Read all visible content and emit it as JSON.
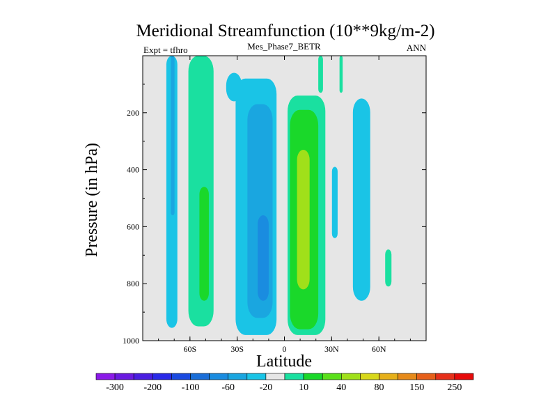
{
  "chart_data": {
    "type": "heatmap",
    "title": "Meridional Streamfunction (10**9kg/m-2)",
    "left_string": "Expt = tfhro",
    "center_string": "Mes_Phase7_BETR",
    "right_string": "ANN",
    "xlabel": "Latitude",
    "ylabel": "Pressure (in hPa)",
    "xlim": [
      -90,
      90
    ],
    "ylim": [
      1000,
      0
    ],
    "x_ticks": [
      {
        "value": -60,
        "label": "60S"
      },
      {
        "value": -30,
        "label": "30S"
      },
      {
        "value": 0,
        "label": "0"
      },
      {
        "value": 30,
        "label": "30N"
      },
      {
        "value": 60,
        "label": "60N"
      }
    ],
    "y_ticks": [
      {
        "value": 200,
        "label": "200"
      },
      {
        "value": 400,
        "label": "400"
      },
      {
        "value": 600,
        "label": "600"
      },
      {
        "value": 800,
        "label": "800"
      },
      {
        "value": 1000,
        "label": "1000"
      }
    ],
    "background_color": "#e6e6e6",
    "colorbar": {
      "colors": [
        "#8b1ae8",
        "#6a1ae0",
        "#4a1ee0",
        "#2a2ae8",
        "#1a4ae0",
        "#1a6ed8",
        "#1a8ce0",
        "#1aa6e0",
        "#1ac4e6",
        "#e6e6e6",
        "#1ae0a0",
        "#1ad82a",
        "#5ae01a",
        "#a0e01a",
        "#d8d81a",
        "#e6b01a",
        "#e68a1a",
        "#e6601a",
        "#e6301a",
        "#e60a0a"
      ],
      "labels": [
        {
          "after_box": 1,
          "text": "-300"
        },
        {
          "after_box": 3,
          "text": "-200"
        },
        {
          "after_box": 5,
          "text": "-100"
        },
        {
          "after_box": 7,
          "text": "-60"
        },
        {
          "after_box": 9,
          "text": "-20"
        },
        {
          "after_box": 11,
          "text": "10"
        },
        {
          "after_box": 13,
          "text": "40"
        },
        {
          "after_box": 15,
          "text": "80"
        },
        {
          "after_box": 17,
          "text": "150"
        },
        {
          "after_box": 19,
          "text": "250"
        }
      ]
    },
    "regions": [
      {
        "name": "cell-south-polar-negative",
        "level": "-20",
        "color": "#1ac4e6",
        "lat_center": -71.5,
        "lat_halfwidth": 3.5,
        "p_top": 0,
        "p_bottom": 955
      },
      {
        "name": "cell-south-polar-negative-core",
        "level": "-60",
        "color": "#1aa6e0",
        "lat_center": -71,
        "lat_halfwidth": 1.2,
        "p_top": 0,
        "p_bottom": 560
      },
      {
        "name": "cell-south-ferrel-positive",
        "level": "10",
        "color": "#1ae0a0",
        "lat_center": -53,
        "lat_halfwidth": 8,
        "p_top": 0,
        "p_bottom": 950
      },
      {
        "name": "cell-south-ferrel-positive-core",
        "level": "40",
        "color": "#1ad82a",
        "lat_center": -51,
        "lat_halfwidth": 3,
        "p_top": 460,
        "p_bottom": 860
      },
      {
        "name": "cell-south-hadley-negative",
        "level": "-20",
        "color": "#1ac4e6",
        "lat_center": -18,
        "lat_halfwidth": 13,
        "p_top": 80,
        "p_bottom": 980
      },
      {
        "name": "cell-south-hadley-negative-mid",
        "level": "-60",
        "color": "#1aa6e0",
        "lat_center": -15.5,
        "lat_halfwidth": 8,
        "p_top": 170,
        "p_bottom": 920
      },
      {
        "name": "cell-south-hadley-negative-core",
        "level": "-100",
        "color": "#1a8ce0",
        "lat_center": -13.5,
        "lat_halfwidth": 3.5,
        "p_top": 560,
        "p_bottom": 860
      },
      {
        "name": "cell-north-hadley-positive",
        "level": "10",
        "color": "#1ae0a0",
        "lat_center": 14,
        "lat_halfwidth": 12,
        "p_top": 140,
        "p_bottom": 980
      },
      {
        "name": "cell-north-hadley-positive-mid",
        "level": "40",
        "color": "#1ad82a",
        "lat_center": 12.5,
        "lat_halfwidth": 9,
        "p_top": 190,
        "p_bottom": 960
      },
      {
        "name": "cell-north-hadley-positive-core",
        "level": "80",
        "color": "#a0e01a",
        "lat_center": 12,
        "lat_halfwidth": 4,
        "p_top": 330,
        "p_bottom": 820
      },
      {
        "name": "cell-north-narrow-negative",
        "level": "-20",
        "color": "#1ac4e6",
        "lat_center": 32,
        "lat_halfwidth": 1.8,
        "p_top": 390,
        "p_bottom": 640
      },
      {
        "name": "cell-north-ferrel-negative",
        "level": "-20",
        "color": "#1ac4e6",
        "lat_center": 49,
        "lat_halfwidth": 5.5,
        "p_top": 150,
        "p_bottom": 860
      },
      {
        "name": "cell-north-polar-positive",
        "level": "10",
        "color": "#1ae0a0",
        "lat_center": 66,
        "lat_halfwidth": 2,
        "p_top": 680,
        "p_bottom": 810
      },
      {
        "name": "cell-tropopause-positive-filament",
        "level": "10",
        "color": "#1ae0a0",
        "lat_center": 23,
        "lat_halfwidth": 1.5,
        "p_top": 0,
        "p_bottom": 130
      },
      {
        "name": "cell-tropopause-positive-filament-2",
        "level": "10",
        "color": "#1ae0a0",
        "lat_center": 36,
        "lat_halfwidth": 1,
        "p_top": 0,
        "p_bottom": 130
      },
      {
        "name": "cell-upper-negative-spur",
        "level": "-20",
        "color": "#1ac4e6",
        "lat_center": -32,
        "lat_halfwidth": 5,
        "p_top": 60,
        "p_bottom": 160
      }
    ]
  }
}
